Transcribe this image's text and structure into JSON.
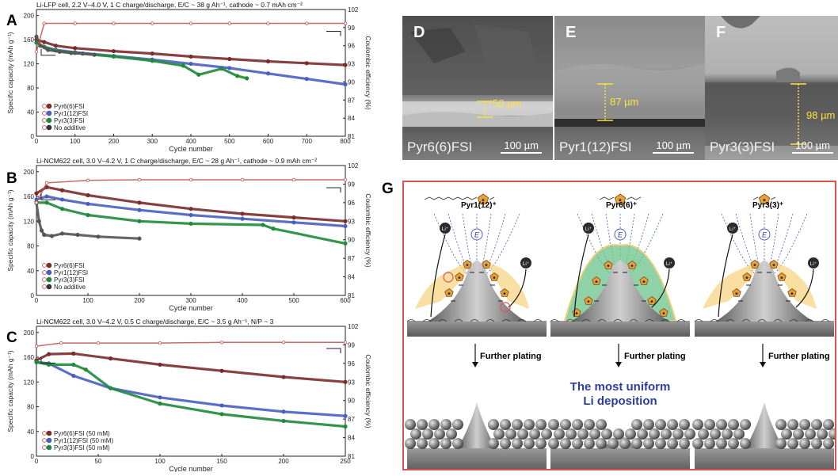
{
  "chart_data": [
    {
      "panel": "A",
      "type": "line",
      "title": "Li-LFP cell, 2.2 V–4.0 V, 1 C charge/discharge, E/C ~ 38 g Ah⁻¹, cathode ~ 0.7 mAh cm⁻²",
      "xlabel": "Cycle number",
      "ylabel": "Specific capacity (mAh g⁻¹)",
      "y2label": "Coulombic efficiency (%)",
      "xlim": [
        0,
        800
      ],
      "ylim": [
        0,
        210
      ],
      "y2lim": [
        81,
        102
      ],
      "xticks": [
        "0",
        "100",
        "200",
        "300",
        "400",
        "500",
        "600",
        "700",
        "800"
      ],
      "yticks": [
        "0",
        "40",
        "80",
        "120",
        "160",
        "200"
      ],
      "y2ticks": [
        "81",
        "84",
        "87",
        "90",
        "93",
        "96",
        "99",
        "102"
      ],
      "legend": [
        "Pyr6(6)FSI",
        "Pyr1(12)FSI",
        "Pyr3(3)FSI",
        "No additive"
      ],
      "series": [
        {
          "name": "Pyr6(6)FSI",
          "color": "#7a2c2c",
          "axis": "left",
          "x": [
            0,
            20,
            50,
            100,
            200,
            300,
            400,
            500,
            600,
            700,
            800
          ],
          "y": [
            160,
            156,
            150,
            146,
            141,
            137,
            132,
            128,
            124,
            121,
            118
          ]
        },
        {
          "name": "Pyr1(12)FSI",
          "color": "#4a5fc0",
          "axis": "left",
          "x": [
            0,
            20,
            50,
            100,
            200,
            300,
            400,
            500,
            600,
            700,
            800
          ],
          "y": [
            155,
            148,
            143,
            139,
            133,
            127,
            120,
            113,
            104,
            95,
            86
          ]
        },
        {
          "name": "Pyr3(3)FSI",
          "color": "#1f8a3b",
          "axis": "left",
          "x": [
            0,
            20,
            50,
            100,
            200,
            300,
            380,
            420,
            480,
            520,
            545
          ],
          "y": [
            155,
            148,
            142,
            138,
            132,
            125,
            117,
            102,
            112,
            100,
            96
          ]
        },
        {
          "name": "No additive",
          "color": "#555555",
          "axis": "left",
          "x": [
            0,
            10,
            30,
            60,
            90,
            120,
            150
          ],
          "y": [
            165,
            150,
            143,
            140,
            138,
            137,
            135
          ]
        },
        {
          "name": "CE",
          "color": "#c0504d",
          "axis": "right",
          "x": [
            0,
            20,
            100,
            200,
            300,
            400,
            500,
            600,
            700,
            800
          ],
          "y": [
            95,
            99.7,
            99.7,
            99.7,
            99.7,
            99.7,
            99.7,
            99.7,
            99.7,
            99.7
          ]
        }
      ]
    },
    {
      "panel": "B",
      "type": "line",
      "title": "Li-NCM622 cell, 3.0 V–4.2 V, 1 C charge/discharge, E/C ~ 28 g Ah⁻¹, cathode ~ 0.9 mAh cm⁻²",
      "xlabel": "Cycle number",
      "ylabel": "Specific capacity (mAh g⁻¹)",
      "y2label": "Coulombic efficiency (%)",
      "xlim": [
        0,
        600
      ],
      "ylim": [
        0,
        210
      ],
      "y2lim": [
        81,
        102
      ],
      "xticks": [
        "0",
        "100",
        "200",
        "300",
        "400",
        "500",
        "600"
      ],
      "yticks": [
        "0",
        "40",
        "80",
        "120",
        "160",
        "200"
      ],
      "y2ticks": [
        "81",
        "84",
        "87",
        "90",
        "93",
        "96",
        "99",
        "102"
      ],
      "legend": [
        "Pyr6(6)FSI",
        "Pyr1(12)FSI",
        "Pyr3(3)FSI",
        "No additive"
      ],
      "series": [
        {
          "name": "Pyr6(6)FSI",
          "color": "#7a2c2c",
          "axis": "left",
          "x": [
            0,
            20,
            50,
            100,
            200,
            300,
            400,
            500,
            600
          ],
          "y": [
            165,
            175,
            170,
            162,
            150,
            140,
            132,
            126,
            120
          ]
        },
        {
          "name": "Pyr1(12)FSI",
          "color": "#4a5fc0",
          "axis": "left",
          "x": [
            0,
            20,
            50,
            100,
            200,
            300,
            400,
            500,
            600
          ],
          "y": [
            155,
            160,
            155,
            148,
            138,
            130,
            124,
            118,
            112
          ]
        },
        {
          "name": "Pyr3(3)FSI",
          "color": "#1f8a3b",
          "axis": "left",
          "x": [
            0,
            20,
            50,
            100,
            200,
            300,
            440,
            460,
            600
          ],
          "y": [
            150,
            150,
            140,
            130,
            120,
            116,
            114,
            108,
            84
          ]
        },
        {
          "name": "No additive",
          "color": "#555555",
          "axis": "left",
          "x": [
            0,
            5,
            10,
            15,
            30,
            50,
            80,
            120,
            200
          ],
          "y": [
            150,
            120,
            105,
            98,
            96,
            100,
            98,
            95,
            92
          ]
        },
        {
          "name": "CE",
          "color": "#c0504d",
          "axis": "right",
          "x": [
            0,
            20,
            100,
            200,
            300,
            400,
            500,
            600
          ],
          "y": [
            96,
            99.2,
            99.6,
            99.7,
            99.7,
            99.7,
            99.7,
            99.7
          ]
        }
      ]
    },
    {
      "panel": "C",
      "type": "line",
      "title": "Li-NCM622 cell, 3.0 V–4.2 V, 0.5 C charge/discharge, E/C ~ 3.5 g Ah⁻¹, N/P ~ 3",
      "xlabel": "Cycle number",
      "ylabel": "Specific capacity (mAh g⁻¹)",
      "y2label": "Coulombic efficiency (%)",
      "xlim": [
        0,
        250
      ],
      "ylim": [
        0,
        210
      ],
      "y2lim": [
        81,
        102
      ],
      "xticks": [
        "0",
        "50",
        "100",
        "150",
        "200",
        "250"
      ],
      "yticks": [
        "0",
        "40",
        "80",
        "120",
        "160",
        "200"
      ],
      "y2ticks": [
        "81",
        "84",
        "87",
        "90",
        "93",
        "96",
        "99",
        "102"
      ],
      "legend": [
        "Pyr6(6)FSI (50 mM)",
        "Pyr1(12)FSI (50 mM)",
        "Pyr3(3)FSI (50 mM)"
      ],
      "series": [
        {
          "name": "Pyr6(6)FSI (50 mM)",
          "color": "#7a2c2c",
          "axis": "left",
          "x": [
            0,
            10,
            30,
            60,
            100,
            150,
            200,
            250
          ],
          "y": [
            155,
            165,
            166,
            158,
            148,
            138,
            128,
            120
          ]
        },
        {
          "name": "Pyr1(12)FSI (50 mM)",
          "color": "#4a5fc0",
          "axis": "left",
          "x": [
            0,
            10,
            30,
            60,
            100,
            150,
            200,
            250
          ],
          "y": [
            152,
            150,
            130,
            110,
            95,
            82,
            72,
            65
          ]
        },
        {
          "name": "Pyr3(3)FSI (50 mM)",
          "color": "#1f8a3b",
          "axis": "left",
          "x": [
            0,
            10,
            30,
            40,
            60,
            100,
            150,
            200,
            250
          ],
          "y": [
            152,
            148,
            148,
            140,
            110,
            85,
            68,
            57,
            48
          ]
        },
        {
          "name": "CE",
          "color": "#c0504d",
          "axis": "right",
          "x": [
            0,
            20,
            50,
            100,
            150,
            200,
            250
          ],
          "y": [
            98.8,
            99.3,
            99.3,
            99.3,
            99.4,
            99.4,
            99.4
          ]
        }
      ]
    }
  ],
  "panels": {
    "A": "A",
    "B": "B",
    "C": "C",
    "D": "D",
    "E": "E",
    "F": "F",
    "G": "G"
  },
  "sem": {
    "D": {
      "label": "Pyr6(6)FSI",
      "thickness": "50 µm",
      "scale": "100 µm"
    },
    "E": {
      "label": "Pyr1(12)FSI",
      "thickness": "87 µm",
      "scale": "100 µm"
    },
    "F": {
      "label": "Pyr3(3)FSI",
      "thickness": "98 µm",
      "scale": "100 µm"
    }
  },
  "schematic": {
    "cations": [
      "Pyr1(12)⁺",
      "Pyr6(6)⁺",
      "Pyr3(3)⁺"
    ],
    "li": "Li⁺",
    "e": "E",
    "further": "Further plating",
    "center_line1": "The most uniform",
    "center_line2": "Li deposition",
    "colors": {
      "frame": "#d9534f",
      "highlight": "#2b3fa0",
      "cation": "#e8a23c",
      "cloud": "#6cc48a"
    }
  }
}
